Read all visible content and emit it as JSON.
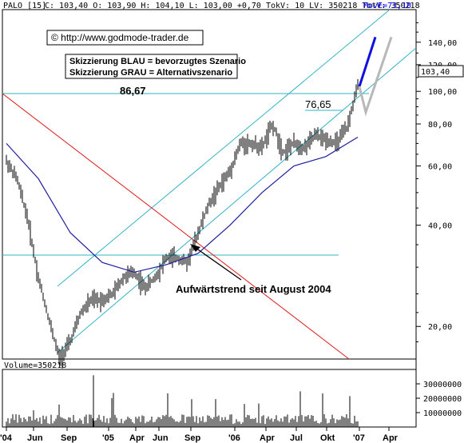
{
  "header": {
    "symbol": "PALO [15]",
    "quote": "C: 103,40 O: 103,90 H: 104,10 L: 103,00 +0,70 TokV: 10 LV: 350218 TotV: 350218",
    "movavg": "MovE=73,10"
  },
  "annotations": {
    "copyright": "© http://www.godmode-trader.de",
    "legend_blue": "Skizzierung BLAU = bevorzugtes Szenario",
    "legend_grey": "Skizzierung GRAU = Alternativszenario",
    "level_high": "86,67",
    "level_mid": "76,65",
    "trend_text": "Aufwärtstrend seit August 2004",
    "price_box": "103,40"
  },
  "volume_label": "Volume=350218",
  "colors": {
    "price": "#000000",
    "moving_average": "#1f1f9e",
    "channel": "#33b3c6",
    "resistance_line": "#33b3c6",
    "downtrend_line": "#e01818",
    "scenario_blue": "#1010e0",
    "scenario_grey": "#b8b8b8",
    "axis_text": "#000000"
  },
  "chart_data": {
    "type": "line",
    "scale": "log",
    "ylim": [
      16,
      175
    ],
    "y_ticks": [
      {
        "value": 140,
        "label": "140,00"
      },
      {
        "value": 120,
        "label": "120,00"
      },
      {
        "value": 100,
        "label": "100,00"
      },
      {
        "value": 80,
        "label": "80,00"
      },
      {
        "value": 60,
        "label": "60,00"
      },
      {
        "value": 40,
        "label": "40,00"
      },
      {
        "value": 20,
        "label": "20,00"
      }
    ],
    "x_ticks": [
      "'04",
      "Jun",
      "Sep",
      "'05",
      "Apr",
      "Jun",
      "Sep",
      "'06",
      "Apr",
      "Jul",
      "Okt",
      "'07",
      "Apr"
    ],
    "series": [
      {
        "x": [
          "2004-03",
          "2004-04",
          "2004-05",
          "2004-06",
          "2004-07",
          "2004-08",
          "2004-09",
          "2004-10",
          "2004-11",
          "2004-12",
          "2005-01",
          "2005-02",
          "2005-03",
          "2005-04",
          "2005-05",
          "2005-06",
          "2005-07",
          "2005-08",
          "2005-09",
          "2005-10",
          "2005-11",
          "2005-12",
          "2006-01",
          "2006-02",
          "2006-03",
          "2006-04",
          "2006-05",
          "2006-06",
          "2006-07",
          "2006-08",
          "2006-09",
          "2006-10",
          "2006-11",
          "2006-12"
        ],
        "values": [
          62,
          55,
          42,
          28,
          21,
          16,
          18,
          22,
          24,
          24,
          25,
          28,
          29,
          26,
          28,
          32,
          32,
          31,
          38,
          46,
          52,
          58,
          70,
          70,
          68,
          80,
          66,
          70,
          68,
          74,
          72,
          70,
          78,
          103.4
        ]
      },
      {
        "x": [
          "2004-03",
          "2004-06",
          "2004-09",
          "2004-12",
          "2005-03",
          "2005-06",
          "2005-09",
          "2005-12",
          "2006-03",
          "2006-06",
          "2006-09",
          "2006-12"
        ],
        "values": [
          70,
          55,
          38,
          31,
          29,
          30.5,
          33,
          40,
          50,
          60,
          64,
          73.1
        ]
      }
    ],
    "volume": {
      "yticks": [
        10000000,
        20000000,
        30000000
      ],
      "ytick_labels": [
        "10000000",
        "20000000",
        "30000000"
      ]
    },
    "scenarios": {
      "blue": [
        103.4,
        145
      ],
      "grey": [
        103.4,
        86.67,
        145
      ]
    }
  }
}
